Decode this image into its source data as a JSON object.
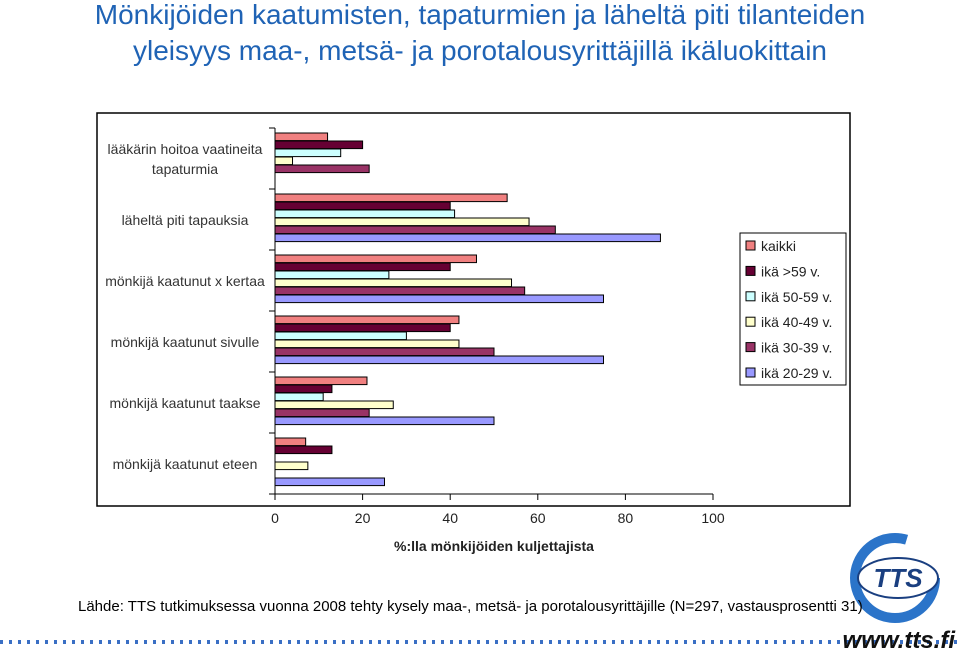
{
  "chart_data": {
    "type": "barh",
    "title": [
      "Mönkijöiden kaatumisten, tapaturmien ja läheltä piti tilanteiden",
      "yleisyys maa-, metsä- ja porotalousyrittäjillä ikäluokittain"
    ],
    "categories": [
      "lääkärin hoitoa vaatineita tapaturmia",
      "läheltä piti tapauksia",
      "mönkijä kaatunut x kertaa",
      "mönkijä kaatunut sivulle",
      "mönkijä kaatunut taakse",
      "mönkijä kaatunut eteen"
    ],
    "series": [
      {
        "name": "kaikki",
        "color": "#f08080",
        "values": [
          12,
          53,
          46,
          42,
          21,
          7
        ]
      },
      {
        "name": "ikä >59 v.",
        "color": "#660033",
        "values": [
          20,
          40,
          40,
          40,
          13,
          13
        ]
      },
      {
        "name": "ikä 50-59 v.",
        "color": "#ccffff",
        "values": [
          15,
          41,
          26,
          30,
          11,
          0
        ]
      },
      {
        "name": "ikä 40-49 v.",
        "color": "#ffffcc",
        "values": [
          4,
          58,
          54,
          42,
          27,
          7.5
        ]
      },
      {
        "name": "ikä 30-39 v.",
        "color": "#993366",
        "values": [
          21.5,
          64,
          57,
          50,
          21.5,
          0
        ]
      },
      {
        "name": "ikä 20-29 v.",
        "color": "#9999ff",
        "values": [
          0,
          88,
          75,
          75,
          50,
          25
        ]
      }
    ],
    "xlim": [
      0,
      100
    ],
    "xticks": [
      0,
      20,
      40,
      60,
      80,
      100
    ],
    "xlabel": "%:lla mönkijöiden kuljettajista",
    "legend": "right",
    "source": "Lähde: TTS tutkimuksessa vuonna 2008 tehty kysely maa-, metsä- ja porotalousyrittäjille (N=297, vastausprosentti 31)"
  },
  "logo_text": "TTS",
  "url": "www.tts.fi"
}
